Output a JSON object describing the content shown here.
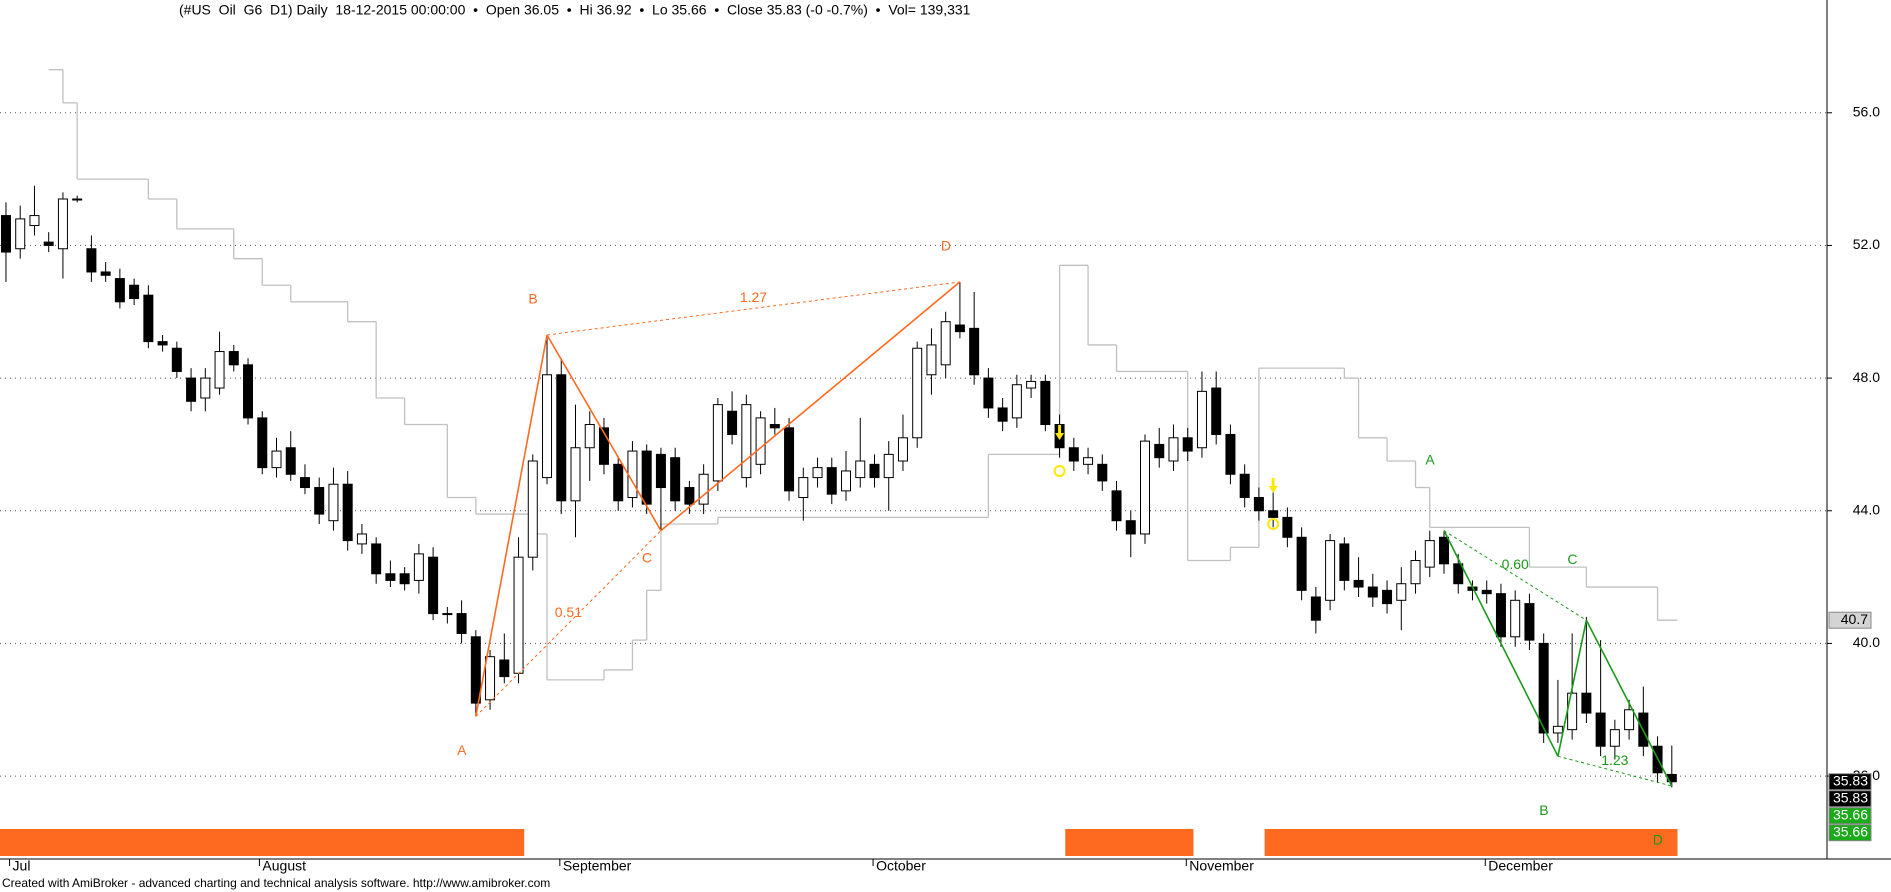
{
  "chart_data": {
    "type": "candlestick",
    "title": "(#US  Oil  G6  D1) Daily  18-12-2015 00:00:00  •  Open 36.05  •  Hi 36.92  •  Lo 35.66  •  Close 35.83 (-0 -0.7%)  •  Vol= 139,331",
    "footer": "Created with AmiBroker - advanced charting and technical analysis software. http://www.amibroker.com",
    "ylim": [
      33.5,
      59.4
    ],
    "xlim": [
      -0.42,
      127.9
    ],
    "yticks": [
      {
        "value": 36,
        "label": "36.0"
      },
      {
        "value": 40,
        "label": "40.0"
      },
      {
        "value": 44,
        "label": "44.0"
      },
      {
        "value": 48,
        "label": "48.0"
      },
      {
        "value": 52,
        "label": "52.0"
      },
      {
        "value": 56,
        "label": "56.0"
      }
    ],
    "xticks": [
      {
        "value": 0.25,
        "label": "Jul"
      },
      {
        "value": 17.8,
        "label": "August"
      },
      {
        "value": 38.9,
        "label": "September"
      },
      {
        "value": 60.9,
        "label": "October"
      },
      {
        "value": 82.9,
        "label": "November"
      },
      {
        "value": 103.9,
        "label": "December"
      }
    ],
    "grid": true,
    "up_color": "#ffffff",
    "down_color": "#000000",
    "ohlc": [
      [
        52.9,
        53.3,
        50.9,
        51.8
      ],
      [
        51.9,
        53.2,
        51.6,
        52.8
      ],
      [
        52.6,
        53.8,
        52.3,
        52.9
      ],
      [
        52.1,
        52.4,
        51.8,
        52.0
      ],
      [
        51.9,
        53.6,
        51.0,
        53.4
      ],
      [
        53.4,
        53.5,
        53.3,
        53.4
      ],
      [
        51.9,
        52.3,
        50.9,
        51.2
      ],
      [
        51.2,
        51.5,
        50.9,
        51.1
      ],
      [
        51.0,
        51.3,
        50.1,
        50.3
      ],
      [
        50.8,
        51.0,
        50.2,
        50.4
      ],
      [
        50.5,
        50.8,
        48.9,
        49.1
      ],
      [
        49.1,
        49.3,
        48.8,
        49.0
      ],
      [
        48.9,
        49.1,
        48.0,
        48.2
      ],
      [
        48.0,
        48.3,
        47.0,
        47.3
      ],
      [
        47.4,
        48.3,
        47.0,
        48.0
      ],
      [
        47.7,
        49.4,
        47.5,
        48.8
      ],
      [
        48.8,
        49.0,
        48.2,
        48.4
      ],
      [
        48.4,
        48.6,
        46.6,
        46.8
      ],
      [
        46.8,
        47.0,
        45.1,
        45.3
      ],
      [
        45.3,
        46.2,
        45.0,
        45.8
      ],
      [
        45.9,
        46.4,
        44.9,
        45.1
      ],
      [
        45.0,
        45.4,
        44.5,
        44.7
      ],
      [
        44.7,
        45.0,
        43.6,
        43.9
      ],
      [
        43.7,
        45.3,
        43.4,
        44.8
      ],
      [
        44.8,
        45.2,
        42.8,
        43.1
      ],
      [
        43.0,
        43.6,
        42.7,
        43.3
      ],
      [
        43.0,
        43.2,
        41.8,
        42.1
      ],
      [
        42.1,
        42.5,
        41.7,
        41.9
      ],
      [
        42.1,
        42.3,
        41.6,
        41.8
      ],
      [
        41.9,
        43.0,
        41.5,
        42.7
      ],
      [
        42.6,
        42.9,
        40.7,
        40.9
      ],
      [
        40.9,
        41.1,
        40.6,
        40.9
      ],
      [
        40.9,
        41.3,
        40.0,
        40.3
      ],
      [
        40.2,
        40.4,
        37.8,
        38.2
      ],
      [
        38.3,
        39.8,
        38.0,
        39.6
      ],
      [
        39.5,
        40.3,
        38.8,
        39.0
      ],
      [
        39.1,
        43.2,
        38.8,
        42.6
      ],
      [
        42.6,
        45.7,
        42.2,
        45.5
      ],
      [
        45.0,
        49.3,
        44.8,
        48.1
      ],
      [
        48.1,
        48.6,
        43.9,
        44.3
      ],
      [
        44.3,
        47.2,
        43.2,
        45.9
      ],
      [
        45.9,
        47.0,
        44.9,
        46.6
      ],
      [
        46.5,
        46.8,
        45.1,
        45.4
      ],
      [
        45.4,
        45.6,
        44.0,
        44.3
      ],
      [
        44.4,
        46.1,
        44.1,
        45.8
      ],
      [
        45.8,
        46.0,
        43.9,
        44.2
      ],
      [
        45.7,
        45.9,
        43.4,
        44.7
      ],
      [
        45.6,
        45.9,
        44.0,
        44.3
      ],
      [
        44.7,
        44.9,
        43.9,
        44.2
      ],
      [
        44.2,
        45.4,
        43.9,
        45.1
      ],
      [
        44.9,
        47.4,
        44.6,
        47.2
      ],
      [
        47.0,
        47.6,
        46.0,
        46.3
      ],
      [
        45.0,
        47.5,
        44.7,
        47.2
      ],
      [
        45.4,
        47.0,
        45.1,
        46.8
      ],
      [
        46.6,
        47.1,
        46.3,
        46.5
      ],
      [
        46.5,
        46.8,
        44.3,
        44.6
      ],
      [
        44.4,
        45.3,
        43.7,
        45.0
      ],
      [
        45.0,
        45.6,
        44.7,
        45.3
      ],
      [
        45.3,
        45.6,
        44.2,
        44.5
      ],
      [
        44.6,
        45.8,
        44.3,
        45.2
      ],
      [
        45.0,
        46.8,
        44.7,
        45.5
      ],
      [
        45.4,
        45.7,
        44.7,
        45.0
      ],
      [
        45.0,
        46.1,
        44.0,
        45.7
      ],
      [
        45.5,
        46.9,
        45.2,
        46.2
      ],
      [
        46.2,
        49.1,
        45.9,
        48.9
      ],
      [
        48.1,
        49.5,
        47.5,
        49.0
      ],
      [
        48.4,
        50.0,
        48.0,
        49.7
      ],
      [
        49.6,
        50.9,
        49.2,
        49.4
      ],
      [
        49.5,
        50.6,
        47.8,
        48.1
      ],
      [
        48.0,
        48.3,
        46.8,
        47.1
      ],
      [
        47.1,
        47.4,
        46.4,
        46.7
      ],
      [
        46.8,
        48.1,
        46.5,
        47.8
      ],
      [
        47.7,
        48.1,
        47.4,
        47.9
      ],
      [
        47.9,
        48.1,
        46.4,
        46.6
      ],
      [
        46.6,
        46.9,
        45.6,
        45.9
      ],
      [
        45.9,
        46.2,
        45.2,
        45.5
      ],
      [
        45.4,
        45.9,
        45.1,
        45.6
      ],
      [
        45.4,
        45.7,
        44.6,
        44.9
      ],
      [
        44.6,
        44.9,
        43.4,
        43.7
      ],
      [
        43.7,
        44.0,
        42.6,
        43.3
      ],
      [
        43.3,
        46.3,
        43.0,
        46.1
      ],
      [
        46.0,
        46.5,
        45.3,
        45.6
      ],
      [
        45.5,
        46.6,
        45.2,
        46.2
      ],
      [
        46.2,
        46.5,
        45.5,
        45.8
      ],
      [
        45.9,
        48.2,
        45.6,
        47.6
      ],
      [
        47.7,
        48.2,
        46.0,
        46.3
      ],
      [
        46.3,
        46.6,
        44.8,
        45.1
      ],
      [
        45.1,
        45.4,
        44.1,
        44.4
      ],
      [
        44.4,
        44.7,
        43.7,
        44.0
      ],
      [
        44.0,
        44.6,
        43.5,
        43.8
      ],
      [
        43.8,
        44.1,
        42.9,
        43.2
      ],
      [
        43.2,
        43.5,
        41.3,
        41.6
      ],
      [
        41.4,
        41.7,
        40.3,
        40.7
      ],
      [
        41.3,
        43.3,
        41.0,
        43.1
      ],
      [
        43.0,
        43.2,
        41.6,
        41.9
      ],
      [
        41.9,
        42.6,
        41.4,
        41.7
      ],
      [
        41.7,
        42.1,
        41.1,
        41.4
      ],
      [
        41.6,
        41.9,
        40.9,
        41.2
      ],
      [
        41.3,
        42.3,
        40.4,
        41.8
      ],
      [
        41.8,
        42.8,
        41.5,
        42.5
      ],
      [
        42.3,
        43.4,
        42.0,
        43.1
      ],
      [
        43.2,
        43.4,
        42.1,
        42.4
      ],
      [
        42.4,
        42.7,
        41.5,
        41.8
      ],
      [
        41.7,
        41.9,
        41.3,
        41.6
      ],
      [
        41.6,
        41.9,
        41.2,
        41.5
      ],
      [
        41.5,
        41.8,
        39.9,
        40.2
      ],
      [
        40.2,
        41.6,
        39.9,
        41.3
      ],
      [
        41.2,
        41.5,
        39.8,
        40.1
      ],
      [
        40.0,
        40.3,
        37.0,
        37.3
      ],
      [
        37.3,
        38.9,
        37.0,
        37.5
      ],
      [
        37.4,
        40.3,
        37.1,
        38.5
      ],
      [
        38.5,
        40.8,
        37.6,
        37.9
      ],
      [
        37.9,
        40.1,
        36.6,
        36.9
      ],
      [
        36.9,
        37.7,
        36.5,
        37.4
      ],
      [
        37.4,
        38.3,
        37.1,
        38.0
      ],
      [
        37.9,
        38.7,
        36.6,
        36.9
      ],
      [
        36.9,
        37.2,
        35.8,
        36.1
      ],
      [
        36.05,
        36.92,
        35.66,
        35.83
      ]
    ],
    "stop_line": {
      "color": "#c0c0c0",
      "x": [
        3,
        4,
        5,
        10,
        12,
        16,
        18,
        20,
        24,
        26,
        28,
        31,
        33,
        37,
        38,
        42,
        44,
        45,
        46,
        50,
        69,
        74,
        76,
        78,
        83,
        86,
        88,
        94,
        95,
        97,
        99,
        100,
        107,
        111,
        116
      ],
      "values": [
        57.3,
        56.3,
        54.0,
        53.4,
        52.5,
        51.6,
        50.8,
        50.3,
        49.7,
        47.4,
        46.6,
        44.4,
        43.9,
        43.3,
        38.9,
        39.2,
        40.1,
        41.6,
        43.6,
        43.8,
        45.7,
        51.4,
        49.0,
        48.2,
        42.5,
        42.9,
        48.3,
        48.0,
        46.2,
        45.5,
        44.7,
        43.5,
        42.3,
        41.7,
        40.7
      ]
    },
    "patterns": [
      {
        "color": "#ff6a21",
        "points": [
          {
            "label": "A",
            "x": 33,
            "y": 37.8
          },
          {
            "label": "B",
            "x": 38,
            "y": 49.3
          },
          {
            "label": "C",
            "x": 46,
            "y": 43.4
          },
          {
            "label": "D",
            "x": 67,
            "y": 50.9
          }
        ],
        "ratio_ac": "0.51",
        "ratio_bd": "1.27"
      },
      {
        "color": "#1a9a1a",
        "points": [
          {
            "label": "A",
            "x": 101,
            "y": 43.4
          },
          {
            "label": "B",
            "x": 109,
            "y": 36.6
          },
          {
            "label": "C",
            "x": 111,
            "y": 40.7
          },
          {
            "label": "D",
            "x": 117,
            "y": 35.7
          }
        ],
        "ratio_ac": "0.60",
        "ratio_bd": "1.23"
      }
    ],
    "markers": [
      {
        "x": 74,
        "y": 45.2
      },
      {
        "x": 89,
        "y": 43.6
      }
    ],
    "marker_color": "#ffe800",
    "signal_bars": {
      "color": "#ff6a21",
      "ranges": [
        [
          -0.42,
          36.4
        ],
        [
          74.4,
          83.4
        ],
        [
          88.4,
          117.4
        ]
      ]
    },
    "price_labels": [
      {
        "value": 40.7,
        "color": "#d4d4d4",
        "text_color": "#000000"
      },
      {
        "value": 35.83,
        "color": "#000000",
        "text_color": "#ffffff"
      },
      {
        "value": 35.83,
        "color": "#000000",
        "text_color": "#ffffff"
      },
      {
        "value": 35.66,
        "color": "#1aaa1a",
        "text_color": "#ffffff"
      },
      {
        "value": 35.66,
        "color": "#1aaa1a",
        "text_color": "#ffffff"
      }
    ]
  }
}
